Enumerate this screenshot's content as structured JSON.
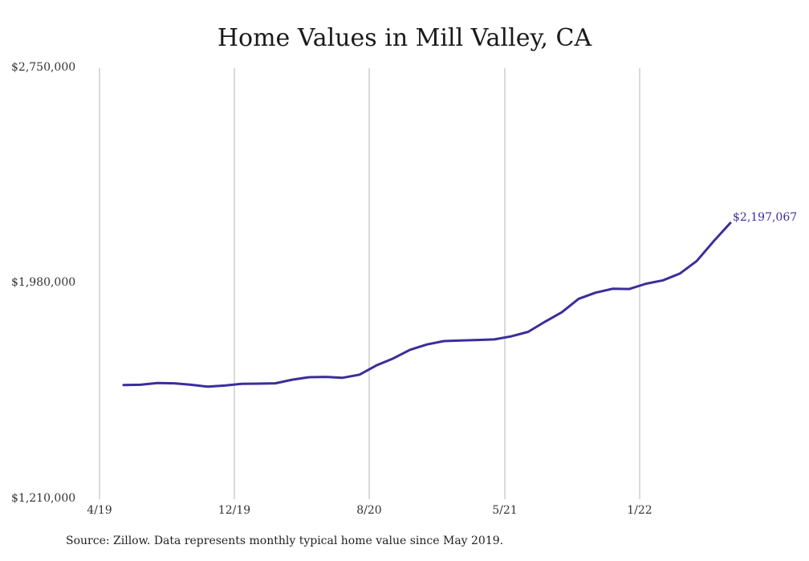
{
  "chart_data": {
    "type": "line",
    "title": "Home Values in Mill Valley, CA",
    "xlabel": "",
    "ylabel": "",
    "ylim": [
      1210000,
      2750000
    ],
    "y_ticks": [
      "$2,750,000",
      "$1,980,000",
      "$1,210,000"
    ],
    "x_ticks": [
      "4/19",
      "12/19",
      "8/20",
      "5/21",
      "1/22"
    ],
    "grid": "vertical",
    "end_label": "$2,197,067",
    "line_color": "#3a2e9a",
    "series": [
      {
        "x": [
          "2019-05",
          "2019-06",
          "2019-07",
          "2019-08",
          "2019-09",
          "2019-10",
          "2019-11",
          "2019-12",
          "2020-01",
          "2020-02",
          "2020-03",
          "2020-04",
          "2020-05",
          "2020-06",
          "2020-07",
          "2020-08",
          "2020-09",
          "2020-10",
          "2020-11",
          "2020-12",
          "2021-01",
          "2021-02",
          "2021-03",
          "2021-04",
          "2021-05",
          "2021-06",
          "2021-07",
          "2021-08",
          "2021-09",
          "2021-10",
          "2021-11",
          "2021-12",
          "2022-01",
          "2022-02",
          "2022-03",
          "2022-04",
          "2022-05"
        ],
        "values": [
          1618000,
          1619000,
          1625000,
          1624000,
          1619000,
          1612000,
          1616000,
          1622000,
          1623000,
          1624000,
          1637000,
          1646000,
          1647000,
          1644000,
          1655000,
          1688000,
          1713000,
          1744000,
          1763000,
          1775000,
          1777000,
          1779000,
          1781000,
          1792000,
          1808000,
          1844000,
          1878000,
          1926000,
          1948000,
          1962000,
          1961000,
          1980000,
          1992000,
          2016000,
          2061000,
          2131000,
          2197067
        ]
      }
    ]
  },
  "footer": {
    "source": "Source: Zillow. Data represents monthly typical home value since May 2019."
  }
}
